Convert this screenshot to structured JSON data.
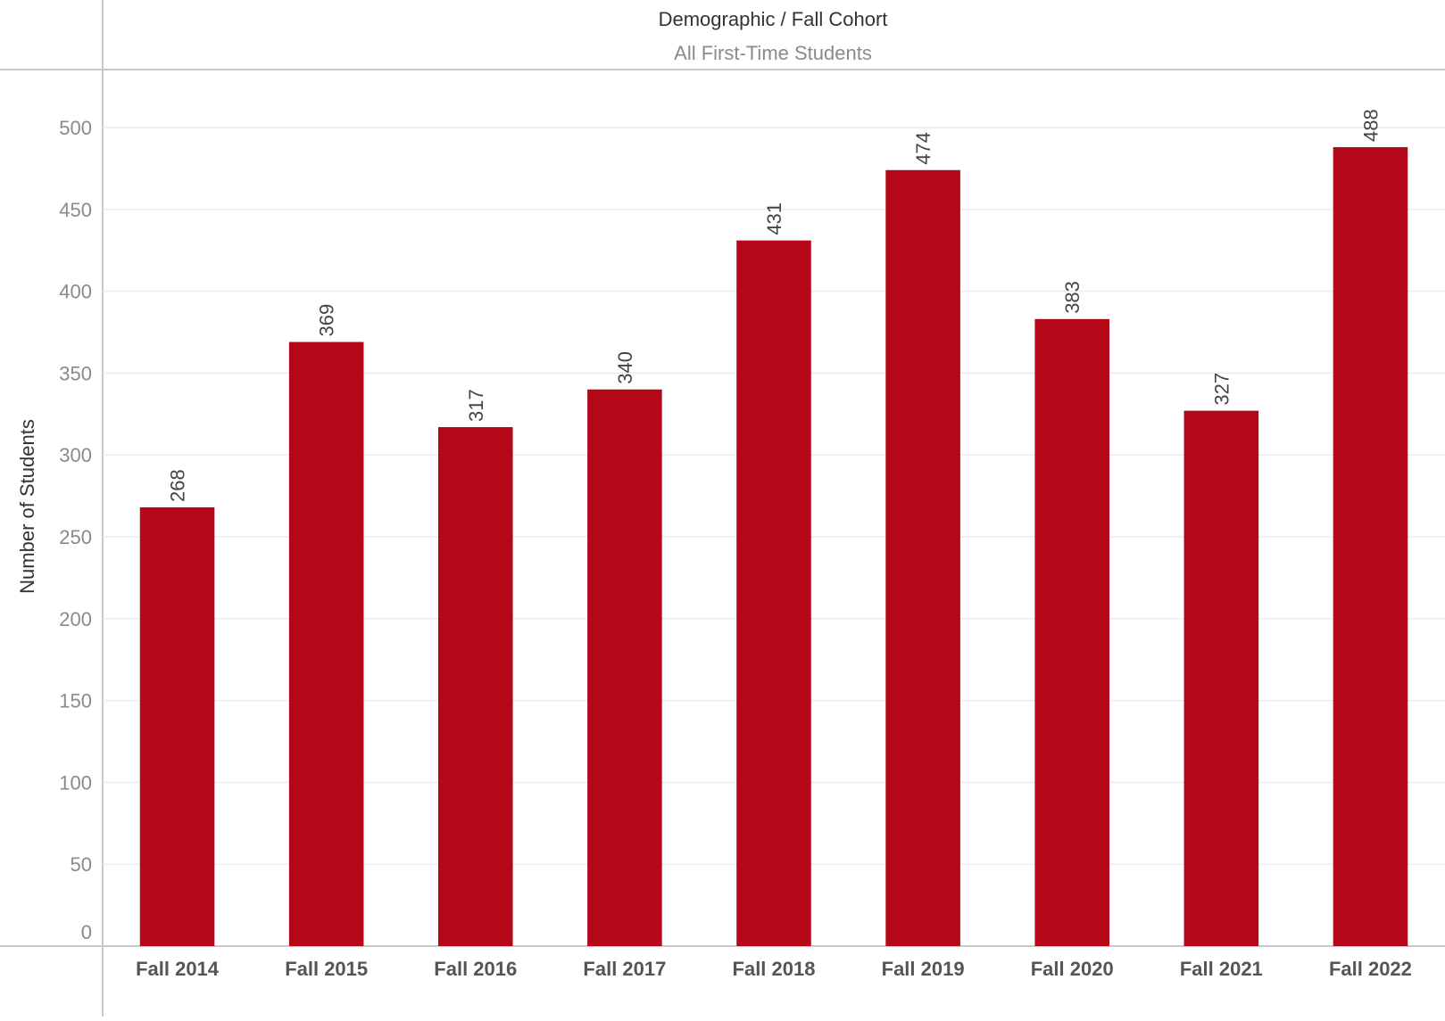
{
  "header": {
    "title": "Demographic / Fall Cohort",
    "subtitle": "All First-Time Students"
  },
  "colors": {
    "bar": "#b40818",
    "grid": "#ececec",
    "axis": "#c8c8c8"
  },
  "chart_data": {
    "type": "bar",
    "title": "Demographic / Fall Cohort",
    "subtitle": "All First-Time Students",
    "xlabel": "",
    "ylabel": "Number of Students",
    "categories": [
      "Fall 2014",
      "Fall 2015",
      "Fall 2016",
      "Fall 2017",
      "Fall 2018",
      "Fall 2019",
      "Fall 2020",
      "Fall 2021",
      "Fall 2022"
    ],
    "values": [
      268,
      369,
      317,
      340,
      431,
      474,
      383,
      327,
      488
    ],
    "value_labels": [
      "268",
      "369",
      "317",
      "340",
      "431",
      "474",
      "383",
      "327",
      "488"
    ],
    "ylim": [
      0,
      500
    ],
    "yticks": [
      0,
      50,
      100,
      150,
      200,
      250,
      300,
      350,
      400,
      450,
      500
    ],
    "ytick_labels": [
      "0",
      "50",
      "100",
      "150",
      "200",
      "250",
      "300",
      "350",
      "400",
      "450",
      "500"
    ],
    "grid": true,
    "legend": "none"
  }
}
